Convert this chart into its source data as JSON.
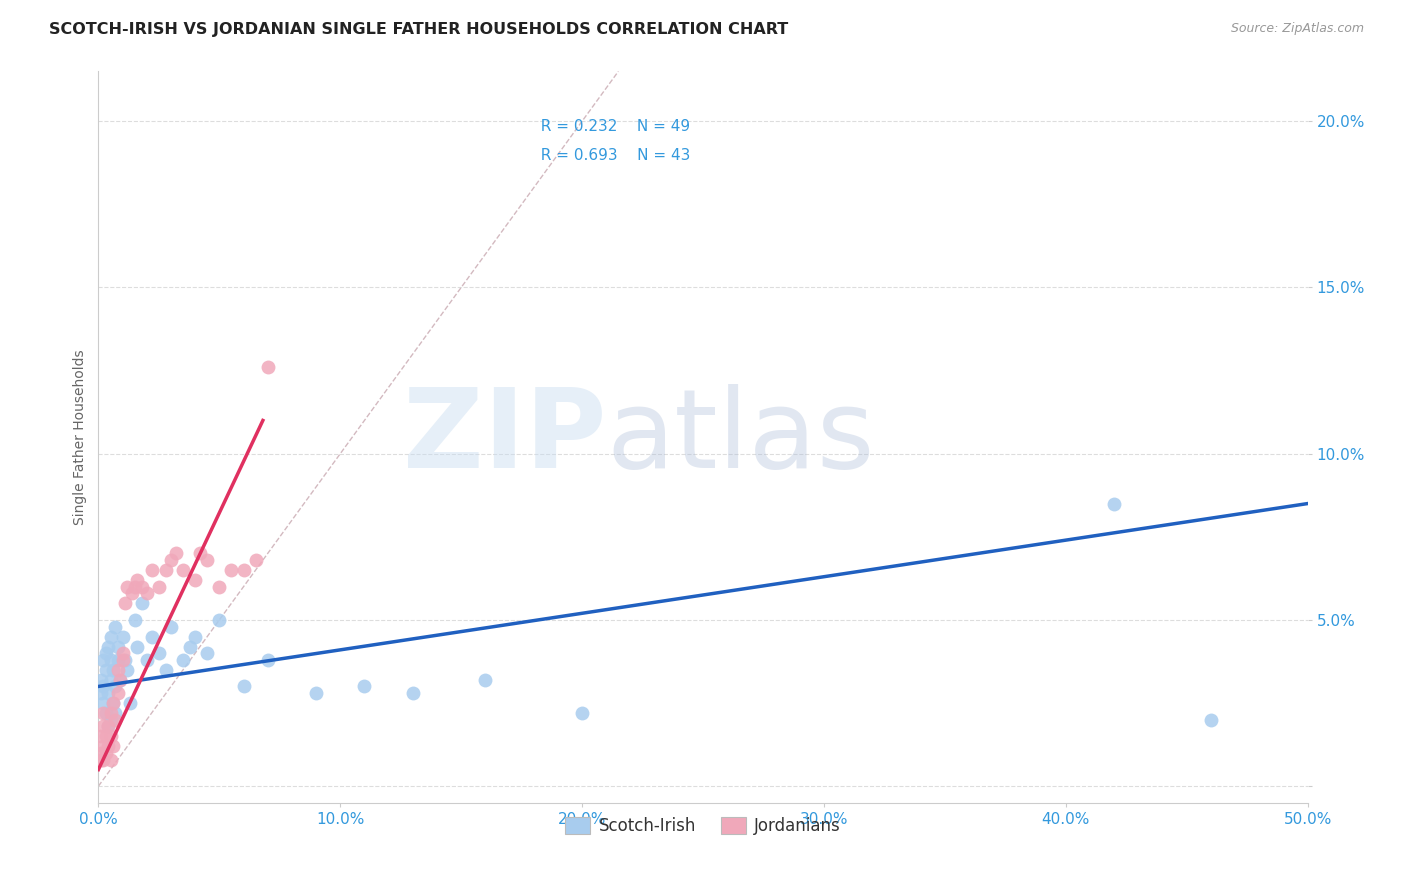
{
  "title": "SCOTCH-IRISH VS JORDANIAN SINGLE FATHER HOUSEHOLDS CORRELATION CHART",
  "source": "Source: ZipAtlas.com",
  "ylabel": "Single Father Households",
  "xlim": [
    0.0,
    0.5
  ],
  "ylim": [
    -0.005,
    0.215
  ],
  "x_ticks": [
    0.0,
    0.1,
    0.2,
    0.3,
    0.4,
    0.5
  ],
  "x_tick_labels": [
    "0.0%",
    "10.0%",
    "20.0%",
    "30.0%",
    "40.0%",
    "50.0%"
  ],
  "y_ticks": [
    0.0,
    0.05,
    0.1,
    0.15,
    0.2
  ],
  "y_tick_labels": [
    "",
    "5.0%",
    "10.0%",
    "15.0%",
    "20.0%"
  ],
  "scotch_irish_color": "#A8CCEE",
  "jordanian_color": "#F0A8BA",
  "scotch_irish_line_color": "#2060C0",
  "jordanian_line_color": "#E03060",
  "diagonal_color": "#C8A8B0",
  "grid_color": "#DDDDDD",
  "legend_R_scotch": "R = 0.232",
  "legend_N_scotch": "N = 49",
  "legend_R_jordan": "R = 0.693",
  "legend_N_jordan": "N = 43",
  "legend_text_color": "#3399DD",
  "scotch_irish_x": [
    0.001,
    0.001,
    0.002,
    0.002,
    0.002,
    0.003,
    0.003,
    0.003,
    0.004,
    0.004,
    0.004,
    0.005,
    0.005,
    0.005,
    0.005,
    0.006,
    0.006,
    0.007,
    0.007,
    0.007,
    0.008,
    0.008,
    0.009,
    0.01,
    0.011,
    0.012,
    0.013,
    0.015,
    0.016,
    0.018,
    0.02,
    0.022,
    0.025,
    0.028,
    0.03,
    0.035,
    0.038,
    0.04,
    0.045,
    0.05,
    0.06,
    0.07,
    0.09,
    0.11,
    0.13,
    0.16,
    0.2,
    0.42,
    0.46
  ],
  "scotch_irish_y": [
    0.028,
    0.032,
    0.025,
    0.03,
    0.038,
    0.022,
    0.035,
    0.04,
    0.018,
    0.028,
    0.042,
    0.02,
    0.032,
    0.038,
    0.045,
    0.025,
    0.035,
    0.022,
    0.03,
    0.048,
    0.038,
    0.042,
    0.032,
    0.045,
    0.038,
    0.035,
    0.025,
    0.05,
    0.042,
    0.055,
    0.038,
    0.045,
    0.04,
    0.035,
    0.048,
    0.038,
    0.042,
    0.045,
    0.04,
    0.05,
    0.03,
    0.038,
    0.028,
    0.03,
    0.028,
    0.032,
    0.022,
    0.085,
    0.02
  ],
  "jordanian_x": [
    0.001,
    0.001,
    0.001,
    0.002,
    0.002,
    0.002,
    0.002,
    0.003,
    0.003,
    0.004,
    0.004,
    0.005,
    0.005,
    0.005,
    0.006,
    0.006,
    0.007,
    0.008,
    0.008,
    0.009,
    0.01,
    0.01,
    0.011,
    0.012,
    0.014,
    0.015,
    0.016,
    0.018,
    0.02,
    0.022,
    0.025,
    0.028,
    0.03,
    0.032,
    0.035,
    0.04,
    0.042,
    0.045,
    0.05,
    0.055,
    0.06,
    0.065,
    0.07
  ],
  "jordanian_y": [
    0.008,
    0.01,
    0.015,
    0.008,
    0.012,
    0.018,
    0.022,
    0.01,
    0.015,
    0.012,
    0.018,
    0.008,
    0.015,
    0.022,
    0.012,
    0.025,
    0.02,
    0.028,
    0.035,
    0.032,
    0.038,
    0.04,
    0.055,
    0.06,
    0.058,
    0.06,
    0.062,
    0.06,
    0.058,
    0.065,
    0.06,
    0.065,
    0.068,
    0.07,
    0.065,
    0.062,
    0.07,
    0.068,
    0.06,
    0.065,
    0.065,
    0.068,
    0.126
  ],
  "si_line_x0": 0.0,
  "si_line_x1": 0.5,
  "si_line_y0": 0.03,
  "si_line_y1": 0.085,
  "jo_line_x0": 0.0,
  "jo_line_x1": 0.068,
  "jo_line_y0": 0.005,
  "jo_line_y1": 0.11
}
